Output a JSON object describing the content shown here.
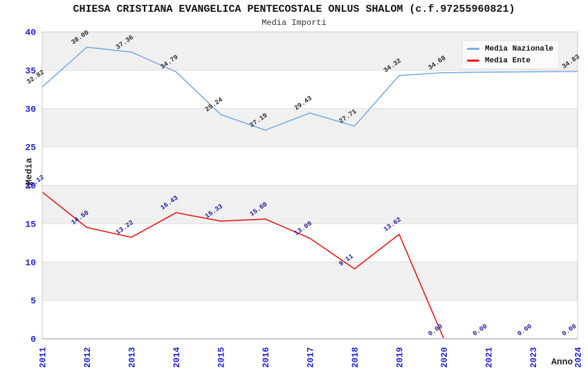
{
  "header": {
    "title": "CHIESA CRISTIANA EVANGELICA PENTECOSTALE ONLUS SHALOM (c.f.97255960821)",
    "subtitle": "Media Importi"
  },
  "legend": {
    "items": [
      {
        "label": "Media Nazionale",
        "color": "#7badde"
      },
      {
        "label": "Media Ente",
        "color": "#e31a1a"
      }
    ]
  },
  "axes": {
    "y_title": "Media",
    "x_title": "Anno",
    "y_ticks": [
      0,
      5,
      10,
      15,
      20,
      25,
      30,
      35,
      40
    ],
    "tick_color": "#2222cc"
  },
  "chart_data": {
    "type": "line",
    "title": "Media Importi",
    "xlabel": "Anno",
    "ylabel": "Media",
    "ylim": [
      0,
      40
    ],
    "x": [
      "2011",
      "2012",
      "2013",
      "2014",
      "2015",
      "2016",
      "2017",
      "2018",
      "2019",
      "2020",
      "2021",
      "2023",
      "2024"
    ],
    "series": [
      {
        "name": "Media Nazionale",
        "color": "#7badde",
        "label_color": "#2b2b2b",
        "values": [
          32.82,
          38.0,
          37.36,
          34.79,
          29.24,
          27.19,
          29.43,
          27.71,
          34.32,
          34.68,
          34.75,
          34.8,
          34.83
        ],
        "labels": [
          "32.82",
          "38.00",
          "37.36",
          "34.79",
          "29.24",
          "27.19",
          "29.43",
          "27.71",
          "34.32",
          "34.68",
          "",
          "",
          "34.83"
        ]
      },
      {
        "name": "Media Ente",
        "color": "#e31a1a",
        "label_color": "#1c1c96",
        "values": [
          19.12,
          14.5,
          13.22,
          16.43,
          15.33,
          15.6,
          13.09,
          9.11,
          13.62,
          0,
          0,
          0,
          0
        ],
        "labels": [
          "19.12",
          "14.50",
          "13.22",
          "16.43",
          "15.33",
          "15.60",
          "13.09",
          "9.11",
          "13.62",
          "0.00",
          "0.00",
          "0.00",
          "0.00"
        ]
      }
    ],
    "band_colors": [
      "#ffffff",
      "#f0f0f0"
    ],
    "grid": "horizontal bands every 5 units",
    "legend_position": "top-right inside plot"
  }
}
